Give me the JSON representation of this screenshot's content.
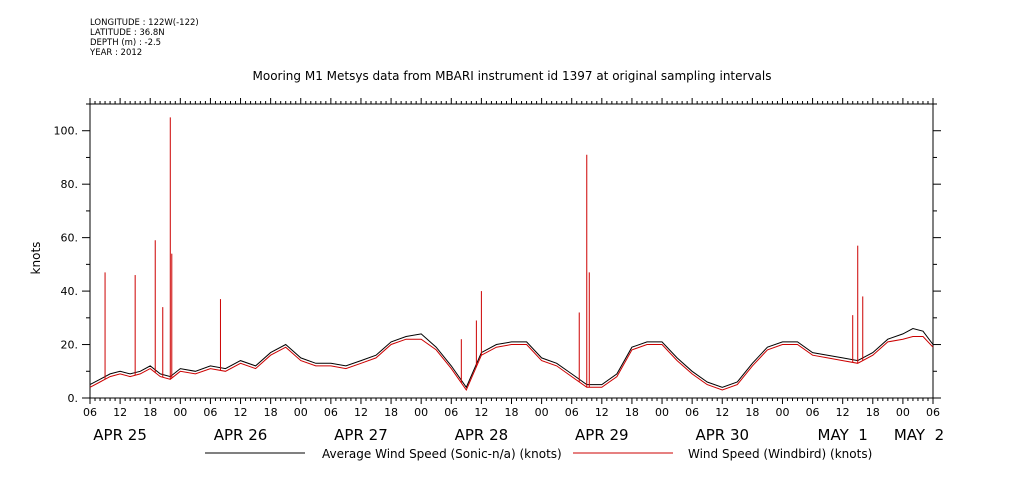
{
  "meta": {
    "longitude": "LONGITUDE : 122W(-122)",
    "latitude": "LATITUDE : 36.8N",
    "depth": "DEPTH (m) : -2.5",
    "year": "YEAR : 2012"
  },
  "chart_data": {
    "type": "line",
    "title": "Mooring M1 Metsys data from MBARI instrument id 1397 at original sampling intervals",
    "xlabel": "",
    "ylabel": "knots",
    "ylim": [
      0,
      110
    ],
    "xlim_hours_from_apr25_00": [
      6,
      174
    ],
    "grid": false,
    "legend_position": "bottom",
    "y_ticks": [
      "0.",
      "20.",
      "40.",
      "60.",
      "80.",
      "100."
    ],
    "x_hour_ticks": [
      "06",
      "12",
      "18",
      "00",
      "06",
      "12",
      "18",
      "00",
      "06",
      "12",
      "18",
      "00",
      "06",
      "12",
      "18",
      "00",
      "06",
      "12",
      "18",
      "00",
      "06",
      "12",
      "18",
      "00",
      "06",
      "12",
      "18",
      "00",
      "06"
    ],
    "x_day_labels": [
      "APR 25",
      "APR 26",
      "APR 27",
      "APR 28",
      "APR 29",
      "APR 30",
      "MAY  1",
      "MAY  2"
    ],
    "series": [
      {
        "name": "Average Wind Speed (Sonic-n/a) (knots)",
        "color": "#000000",
        "x_hours": [
          6,
          8,
          10,
          12,
          14,
          16,
          18,
          20,
          22,
          24,
          27,
          30,
          33,
          36,
          39,
          42,
          45,
          48,
          51,
          54,
          57,
          60,
          63,
          66,
          69,
          72,
          75,
          78,
          81,
          84,
          87,
          90,
          93,
          96,
          99,
          102,
          105,
          108,
          111,
          114,
          117,
          120,
          123,
          126,
          129,
          132,
          135,
          138,
          141,
          144,
          147,
          150,
          153,
          156,
          159,
          162,
          165,
          168,
          170,
          172,
          174
        ],
        "values": [
          5,
          7,
          9,
          10,
          9,
          10,
          12,
          9,
          8,
          11,
          10,
          12,
          11,
          14,
          12,
          17,
          20,
          15,
          13,
          13,
          12,
          14,
          16,
          21,
          23,
          24,
          19,
          12,
          4,
          17,
          20,
          21,
          21,
          15,
          13,
          9,
          5,
          5,
          9,
          19,
          21,
          21,
          15,
          10,
          6,
          4,
          6,
          13,
          19,
          21,
          21,
          17,
          16,
          15,
          14,
          17,
          22,
          24,
          26,
          25,
          20
        ]
      },
      {
        "name": "Wind Speed (Windbird) (knots)",
        "color": "#cc0000",
        "x_hours": [
          6,
          8,
          10,
          12,
          14,
          16,
          18,
          20,
          22,
          24,
          27,
          30,
          33,
          36,
          39,
          42,
          45,
          48,
          51,
          54,
          57,
          60,
          63,
          66,
          69,
          72,
          75,
          78,
          81,
          84,
          87,
          90,
          93,
          96,
          99,
          102,
          105,
          108,
          111,
          114,
          117,
          120,
          123,
          126,
          129,
          132,
          135,
          138,
          141,
          144,
          147,
          150,
          153,
          156,
          159,
          162,
          165,
          168,
          170,
          172,
          174
        ],
        "values": [
          4,
          6,
          8,
          9,
          8,
          9,
          11,
          8,
          7,
          10,
          9,
          11,
          10,
          13,
          11,
          16,
          19,
          14,
          12,
          12,
          11,
          13,
          15,
          20,
          22,
          22,
          18,
          11,
          3,
          16,
          19,
          20,
          20,
          14,
          12,
          8,
          4,
          4,
          8,
          18,
          20,
          20,
          14,
          9,
          5,
          3,
          5,
          12,
          18,
          20,
          20,
          16,
          15,
          14,
          13,
          16,
          21,
          22,
          23,
          23,
          19
        ],
        "spikes": [
          {
            "x": 9,
            "value": 47
          },
          {
            "x": 15,
            "value": 46
          },
          {
            "x": 19,
            "value": 59
          },
          {
            "x": 20.5,
            "value": 34
          },
          {
            "x": 22,
            "value": 105
          },
          {
            "x": 22.3,
            "value": 54
          },
          {
            "x": 32,
            "value": 37
          },
          {
            "x": 84,
            "value": 40
          },
          {
            "x": 83,
            "value": 29
          },
          {
            "x": 80,
            "value": 22
          },
          {
            "x": 105,
            "value": 91
          },
          {
            "x": 105.5,
            "value": 47
          },
          {
            "x": 103.5,
            "value": 32
          },
          {
            "x": 159,
            "value": 57
          },
          {
            "x": 160,
            "value": 38
          },
          {
            "x": 158,
            "value": 31
          }
        ]
      }
    ]
  }
}
